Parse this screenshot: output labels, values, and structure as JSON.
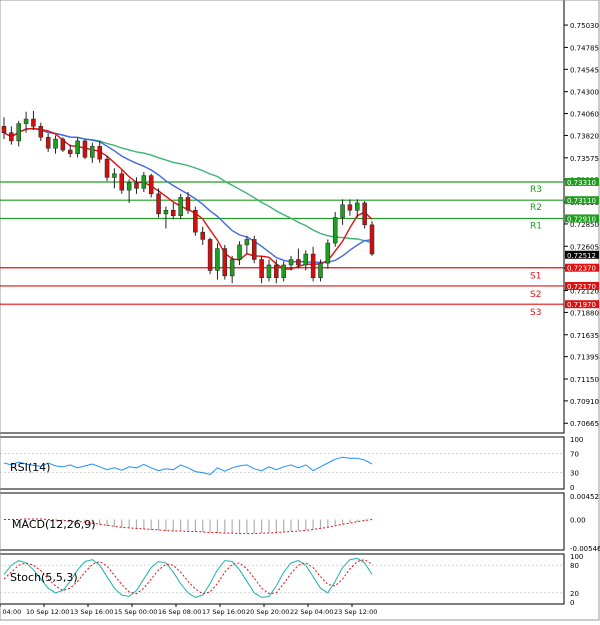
{
  "chart_data": {
    "type": "candlestick",
    "price_axis": {
      "ylim": [
        0.7058,
        0.7525
      ],
      "ticks": [
        "0.75030",
        "0.74785",
        "0.74545",
        "0.74300",
        "0.74060",
        "0.73820",
        "0.73575",
        "0.73335",
        "0.73090",
        "0.72850",
        "0.72605",
        "0.72365",
        "0.72120",
        "0.71880",
        "0.71635",
        "0.71395",
        "0.71150",
        "0.70910",
        "0.70665"
      ],
      "current_price": "0.72512"
    },
    "time_axis": {
      "labels": [
        "9 Sep 04:00",
        "10 Sep 12:00",
        "13 Sep 16:00",
        "15 Sep 00:00",
        "16 Sep 08:00",
        "17 Sep 16:00",
        "20 Sep 20:00",
        "22 Sep 04:00",
        "23 Sep 12:00"
      ]
    },
    "levels": [
      {
        "name": "R3",
        "value": 0.7331,
        "label": "0.73310",
        "color": "#1e9e1e"
      },
      {
        "name": "R2",
        "value": 0.7311,
        "label": "0.73110",
        "color": "#1e9e1e"
      },
      {
        "name": "R1",
        "value": 0.7291,
        "label": "0.72910",
        "color": "#1e9e1e"
      },
      {
        "name": "S1",
        "value": 0.7237,
        "label": "0.72370",
        "color": "#e01010"
      },
      {
        "name": "S2",
        "value": 0.7217,
        "label": "0.72170",
        "color": "#e01010"
      },
      {
        "name": "S3",
        "value": 0.7197,
        "label": "0.71970",
        "color": "#e01010"
      }
    ],
    "candles": [
      {
        "o": 0.7392,
        "h": 0.7402,
        "l": 0.7378,
        "c": 0.7385
      },
      {
        "o": 0.7385,
        "h": 0.7392,
        "l": 0.7372,
        "c": 0.7376
      },
      {
        "o": 0.7376,
        "h": 0.7398,
        "l": 0.737,
        "c": 0.7395
      },
      {
        "o": 0.7395,
        "h": 0.7408,
        "l": 0.7385,
        "c": 0.74
      },
      {
        "o": 0.74,
        "h": 0.7409,
        "l": 0.7388,
        "c": 0.7392
      },
      {
        "o": 0.7392,
        "h": 0.7396,
        "l": 0.7376,
        "c": 0.738
      },
      {
        "o": 0.738,
        "h": 0.7384,
        "l": 0.7364,
        "c": 0.7368
      },
      {
        "o": 0.7368,
        "h": 0.7382,
        "l": 0.7362,
        "c": 0.7378
      },
      {
        "o": 0.7378,
        "h": 0.738,
        "l": 0.7364,
        "c": 0.7366
      },
      {
        "o": 0.7366,
        "h": 0.7372,
        "l": 0.7358,
        "c": 0.7362
      },
      {
        "o": 0.7362,
        "h": 0.738,
        "l": 0.7358,
        "c": 0.7376
      },
      {
        "o": 0.7376,
        "h": 0.7378,
        "l": 0.7356,
        "c": 0.7358
      },
      {
        "o": 0.7358,
        "h": 0.7374,
        "l": 0.7352,
        "c": 0.737
      },
      {
        "o": 0.737,
        "h": 0.7376,
        "l": 0.7352,
        "c": 0.7356
      },
      {
        "o": 0.7356,
        "h": 0.736,
        "l": 0.7332,
        "c": 0.7336
      },
      {
        "o": 0.7336,
        "h": 0.7346,
        "l": 0.7324,
        "c": 0.734
      },
      {
        "o": 0.734,
        "h": 0.7344,
        "l": 0.7318,
        "c": 0.7322
      },
      {
        "o": 0.7322,
        "h": 0.7334,
        "l": 0.7308,
        "c": 0.733
      },
      {
        "o": 0.733,
        "h": 0.7336,
        "l": 0.7318,
        "c": 0.7324
      },
      {
        "o": 0.7324,
        "h": 0.7342,
        "l": 0.732,
        "c": 0.7338
      },
      {
        "o": 0.7338,
        "h": 0.734,
        "l": 0.7314,
        "c": 0.7318
      },
      {
        "o": 0.7318,
        "h": 0.7324,
        "l": 0.7292,
        "c": 0.7296
      },
      {
        "o": 0.7296,
        "h": 0.7304,
        "l": 0.728,
        "c": 0.73
      },
      {
        "o": 0.73,
        "h": 0.7308,
        "l": 0.729,
        "c": 0.7294
      },
      {
        "o": 0.7294,
        "h": 0.7318,
        "l": 0.729,
        "c": 0.7314
      },
      {
        "o": 0.7314,
        "h": 0.732,
        "l": 0.7296,
        "c": 0.73
      },
      {
        "o": 0.73,
        "h": 0.7304,
        "l": 0.7272,
        "c": 0.7276
      },
      {
        "o": 0.7276,
        "h": 0.7282,
        "l": 0.7262,
        "c": 0.7268
      },
      {
        "o": 0.7268,
        "h": 0.727,
        "l": 0.723,
        "c": 0.7234
      },
      {
        "o": 0.7234,
        "h": 0.7264,
        "l": 0.7224,
        "c": 0.7258
      },
      {
        "o": 0.7258,
        "h": 0.7262,
        "l": 0.7224,
        "c": 0.7228
      },
      {
        "o": 0.7228,
        "h": 0.725,
        "l": 0.722,
        "c": 0.7246
      },
      {
        "o": 0.7246,
        "h": 0.7266,
        "l": 0.724,
        "c": 0.7262
      },
      {
        "o": 0.7262,
        "h": 0.7272,
        "l": 0.7252,
        "c": 0.7268
      },
      {
        "o": 0.7268,
        "h": 0.7272,
        "l": 0.7242,
        "c": 0.7246
      },
      {
        "o": 0.7246,
        "h": 0.725,
        "l": 0.722,
        "c": 0.7226
      },
      {
        "o": 0.7226,
        "h": 0.7246,
        "l": 0.7222,
        "c": 0.724
      },
      {
        "o": 0.724,
        "h": 0.7246,
        "l": 0.722,
        "c": 0.7226
      },
      {
        "o": 0.7226,
        "h": 0.7244,
        "l": 0.7222,
        "c": 0.724
      },
      {
        "o": 0.724,
        "h": 0.725,
        "l": 0.7234,
        "c": 0.7246
      },
      {
        "o": 0.7246,
        "h": 0.7258,
        "l": 0.7236,
        "c": 0.724
      },
      {
        "o": 0.724,
        "h": 0.7256,
        "l": 0.7234,
        "c": 0.7252
      },
      {
        "o": 0.7252,
        "h": 0.726,
        "l": 0.7222,
        "c": 0.7226
      },
      {
        "o": 0.7226,
        "h": 0.7246,
        "l": 0.7222,
        "c": 0.7242
      },
      {
        "o": 0.7242,
        "h": 0.7268,
        "l": 0.7236,
        "c": 0.7264
      },
      {
        "o": 0.7264,
        "h": 0.7298,
        "l": 0.726,
        "c": 0.7292
      },
      {
        "o": 0.7292,
        "h": 0.7312,
        "l": 0.7284,
        "c": 0.7306
      },
      {
        "o": 0.7306,
        "h": 0.7312,
        "l": 0.7294,
        "c": 0.73
      },
      {
        "o": 0.73,
        "h": 0.7312,
        "l": 0.7292,
        "c": 0.7308
      },
      {
        "o": 0.7308,
        "h": 0.731,
        "l": 0.728,
        "c": 0.7284
      },
      {
        "o": 0.7284,
        "h": 0.7288,
        "l": 0.725,
        "c": 0.7252
      }
    ],
    "indicators": {
      "rsi": {
        "label": "RSI(14)",
        "ticks": [
          "100",
          "70",
          "30",
          "0"
        ],
        "ylim": [
          0,
          100
        ],
        "values": [
          50,
          46,
          52,
          48,
          45,
          43,
          50,
          44,
          42,
          46,
          40,
          44,
          48,
          42,
          36,
          40,
          35,
          42,
          40,
          47,
          40,
          34,
          38,
          36,
          46,
          40,
          32,
          30,
          26,
          40,
          33,
          40,
          44,
          46,
          38,
          34,
          42,
          36,
          42,
          46,
          40,
          46,
          34,
          42,
          50,
          58,
          62,
          60,
          60,
          56,
          48
        ]
      },
      "macd": {
        "label": "MACD(12,26,9)",
        "ticks": [
          "0.004521",
          "0.00",
          "-0.005469"
        ],
        "ylim": [
          -0.005469,
          0.004521
        ],
        "hist": [
          0.0,
          0.0,
          0.0001,
          0.0002,
          0.0002,
          0.0001,
          0.0,
          -0.0001,
          -0.0002,
          -0.0003,
          -0.0004,
          -0.0006,
          -0.0008,
          -0.001,
          -0.0012,
          -0.0014,
          -0.0016,
          -0.0017,
          -0.0018,
          -0.0019,
          -0.002,
          -0.0021,
          -0.0022,
          -0.0022,
          -0.0023,
          -0.0023,
          -0.0024,
          -0.0024,
          -0.0025,
          -0.0026,
          -0.0026,
          -0.0027,
          -0.0027,
          -0.0027,
          -0.0026,
          -0.0026,
          -0.0025,
          -0.0024,
          -0.0023,
          -0.0022,
          -0.0021,
          -0.002,
          -0.0019,
          -0.0017,
          -0.0015,
          -0.0012,
          -0.0009,
          -0.0006,
          -0.0004,
          -0.0002,
          -0.0001
        ],
        "signal": [
          -0.0,
          -0.0,
          0.0,
          0.0001,
          0.0001,
          0.0001,
          0.0,
          -0.0001,
          -0.0002,
          -0.0003,
          -0.0004,
          -0.0005,
          -0.0007,
          -0.0009,
          -0.0011,
          -0.0013,
          -0.0015,
          -0.0016,
          -0.0017,
          -0.0018,
          -0.0019,
          -0.002,
          -0.0021,
          -0.0022,
          -0.0022,
          -0.0023,
          -0.0023,
          -0.0024,
          -0.0025,
          -0.0025,
          -0.0026,
          -0.0026,
          -0.0027,
          -0.0027,
          -0.0027,
          -0.0026,
          -0.0026,
          -0.0025,
          -0.0024,
          -0.0023,
          -0.0022,
          -0.0021,
          -0.0019,
          -0.0017,
          -0.0015,
          -0.0012,
          -0.0009,
          -0.0007,
          -0.0004,
          -0.0002,
          -0.0
        ]
      },
      "stoch": {
        "label": "Stoch(5,5,3)",
        "ticks": [
          "100",
          "80",
          "20",
          "0"
        ],
        "ylim": [
          0,
          100
        ],
        "main": [
          60,
          80,
          90,
          85,
          70,
          50,
          30,
          20,
          25,
          45,
          70,
          88,
          92,
          80,
          55,
          30,
          15,
          12,
          25,
          50,
          75,
          88,
          85,
          65,
          40,
          20,
          10,
          15,
          40,
          70,
          90,
          88,
          70,
          45,
          20,
          10,
          12,
          35,
          65,
          85,
          90,
          80,
          55,
          30,
          20,
          45,
          75,
          92,
          95,
          85,
          60
        ],
        "signal": [
          50,
          65,
          80,
          85,
          80,
          68,
          50,
          35,
          25,
          30,
          45,
          65,
          82,
          88,
          78,
          58,
          38,
          22,
          18,
          30,
          50,
          70,
          82,
          80,
          65,
          45,
          28,
          18,
          22,
          40,
          65,
          82,
          85,
          72,
          52,
          30,
          18,
          20,
          40,
          62,
          80,
          85,
          75,
          55,
          38,
          35,
          50,
          72,
          88,
          92,
          82
        ]
      }
    }
  }
}
